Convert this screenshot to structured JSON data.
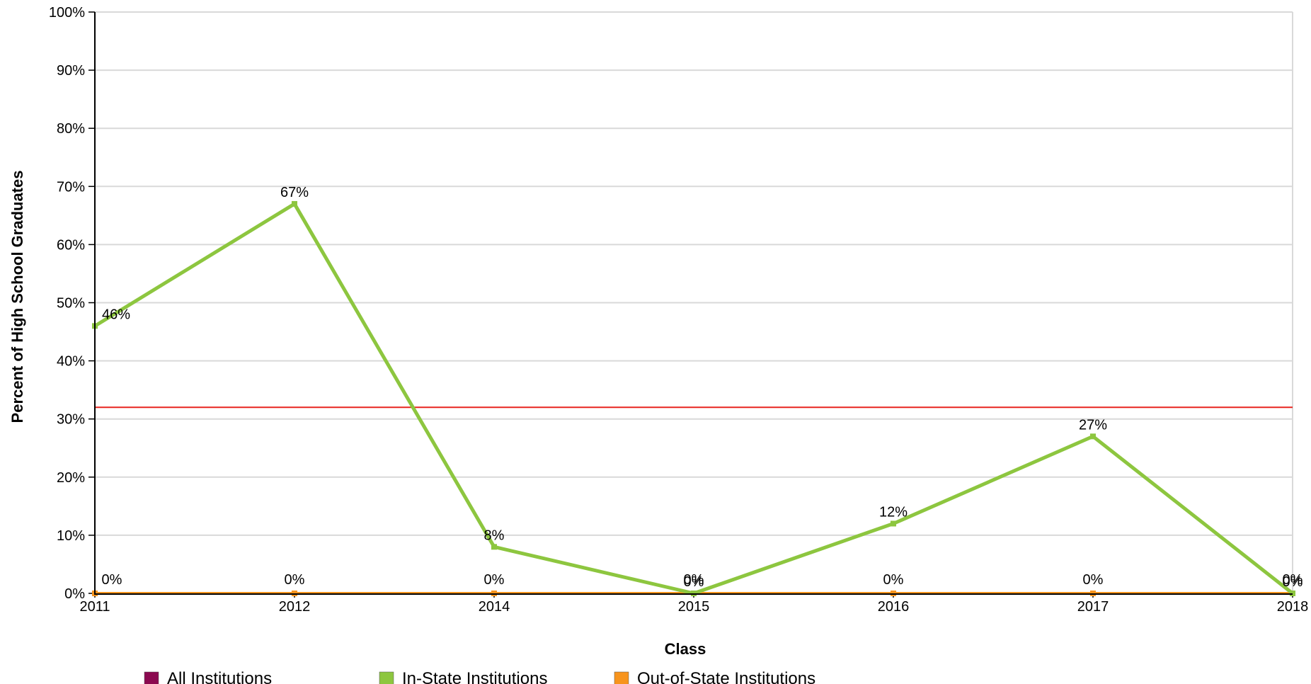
{
  "chart_data": {
    "type": "line",
    "xlabel": "Class",
    "ylabel": "Percent of High School Graduates",
    "categories": [
      "2011",
      "2012",
      "2014",
      "2015",
      "2016",
      "2017",
      "2018"
    ],
    "ylim": [
      0,
      100
    ],
    "yticks": [
      "0%",
      "10%",
      "20%",
      "30%",
      "40%",
      "50%",
      "60%",
      "70%",
      "80%",
      "90%",
      "100%"
    ],
    "grid": true,
    "series": [
      {
        "name": "All Institutions",
        "color": "#8B0A50",
        "values": [
          0,
          0,
          0,
          0,
          0,
          0,
          0
        ],
        "labels": [
          "0%",
          "0%",
          "0%",
          "0%",
          "0%",
          "0%",
          "0%"
        ]
      },
      {
        "name": "In-State Institutions",
        "color": "#8DC63F",
        "values": [
          46,
          67,
          8,
          0,
          12,
          27,
          0
        ],
        "labels": [
          "46%",
          "67%",
          "8%",
          "0%",
          "12%",
          "27%",
          "0%"
        ]
      },
      {
        "name": "Out-of-State Institutions",
        "color": "#F7941D",
        "values": [
          0,
          0,
          0,
          0,
          0,
          0,
          0
        ],
        "labels": []
      }
    ],
    "reference_line": {
      "value": 32,
      "color": "#E8251F"
    },
    "legend": {
      "placement": "bottom"
    }
  }
}
